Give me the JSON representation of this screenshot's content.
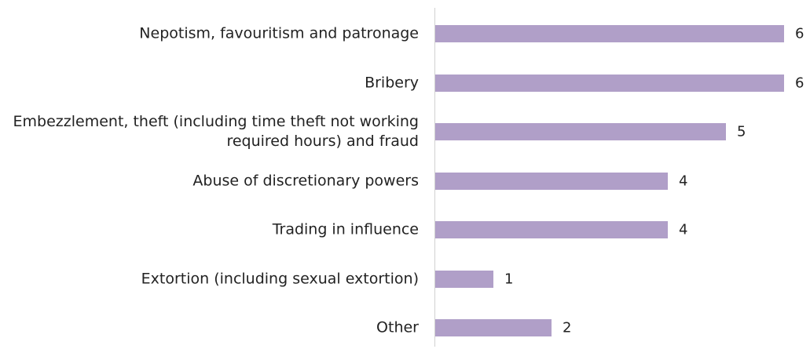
{
  "chart_data": {
    "type": "bar",
    "orientation": "horizontal",
    "categories": [
      "Nepotism, favouritism and patronage",
      "Bribery",
      "Embezzlement, theft (including time theft not working required hours) and fraud",
      "Abuse of discretionary powers",
      "Trading in influence",
      "Extortion (including sexual extortion)",
      "Other"
    ],
    "values": [
      6,
      6,
      5,
      4,
      4,
      1,
      2
    ],
    "color": "#b09fc8"
  }
}
